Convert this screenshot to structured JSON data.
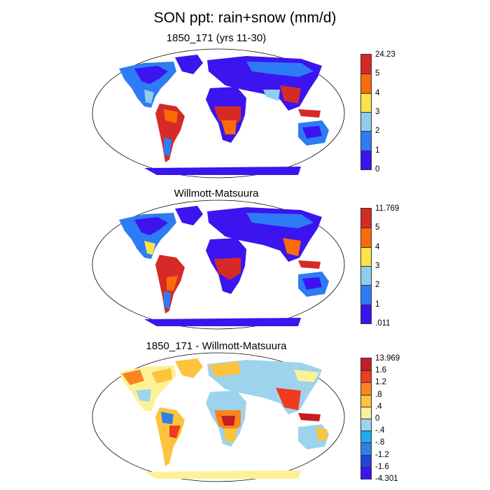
{
  "title": "SON ppt: rain+snow (mm/d)",
  "panels": [
    {
      "title": "1850_171 (yrs 11-30)",
      "colors": [
        "#3b14f0",
        "#2d7cf5",
        "#8fcdef",
        "#fbe447",
        "#fb6a09",
        "#d62a26"
      ],
      "labels": [
        "0",
        "1",
        "2",
        "3",
        "4",
        "5",
        "24.23"
      ]
    },
    {
      "title": "Willmott-Matsuura",
      "colors": [
        "#3b14f0",
        "#2d7cf5",
        "#8fcdef",
        "#fbe447",
        "#fb6a09",
        "#d62a26"
      ],
      "labels": [
        ".011",
        "1",
        "2",
        "3",
        "4",
        "5",
        "11.769"
      ]
    },
    {
      "title": "1850_171 - Willmott-Matsuura",
      "colors": [
        "#3b14f0",
        "#2244dd",
        "#2f7fe8",
        "#1eaaf0",
        "#9ed3ee",
        "#fdf197",
        "#fbc43c",
        "#f9851e",
        "#ef3b1e",
        "#c41d24"
      ],
      "labels": [
        "-4.301",
        "-1.6",
        "-1.2",
        "-.8",
        "-.4",
        "0",
        ".4",
        ".8",
        "1.2",
        "1.6",
        "13.969"
      ]
    }
  ]
}
